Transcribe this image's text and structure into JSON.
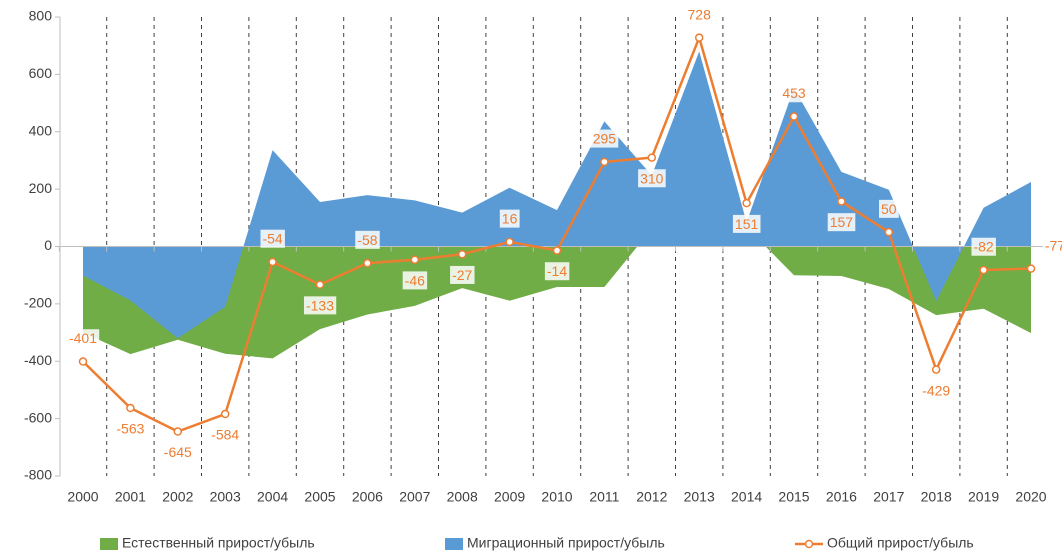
{
  "chart_data": {
    "type": "area-line",
    "categories": [
      "2000",
      "2001",
      "2002",
      "2003",
      "2004",
      "2005",
      "2006",
      "2007",
      "2008",
      "2009",
      "2010",
      "2011",
      "2012",
      "2013",
      "2014",
      "2015",
      "2016",
      "2017",
      "2018",
      "2019",
      "2020"
    ],
    "series": [
      {
        "name": "Естественный прирост/убыль",
        "color": "#70ad47",
        "kind": "area",
        "values": [
          -300,
          -375,
          -325,
          -374,
          -390,
          -288,
          -237,
          -207,
          -145,
          -189,
          -141,
          -141,
          62,
          48,
          67,
          -100,
          -103,
          -148,
          -239,
          -217,
          -302
        ]
      },
      {
        "name": "Миграционный прирост/убыль",
        "color": "#5b9bd5",
        "kind": "area",
        "values": [
          -101,
          -188,
          -320,
          -210,
          336,
          155,
          179,
          161,
          118,
          205,
          127,
          436,
          248,
          680,
          84,
          553,
          260,
          198,
          -190,
          135,
          225
        ]
      },
      {
        "name": "Общий прирост/убыль",
        "color": "#ed7d31",
        "kind": "line",
        "values": [
          -401,
          -563,
          -645,
          -584,
          -54,
          -133,
          -58,
          -46,
          -27,
          16,
          -14,
          295,
          310,
          728,
          151,
          453,
          157,
          50,
          -429,
          -82,
          -77
        ]
      }
    ],
    "ylim": [
      -800,
      800
    ],
    "yticks": [
      -800,
      -600,
      -400,
      -200,
      0,
      200,
      400,
      600,
      800
    ],
    "grid": "vertical-dashed"
  }
}
